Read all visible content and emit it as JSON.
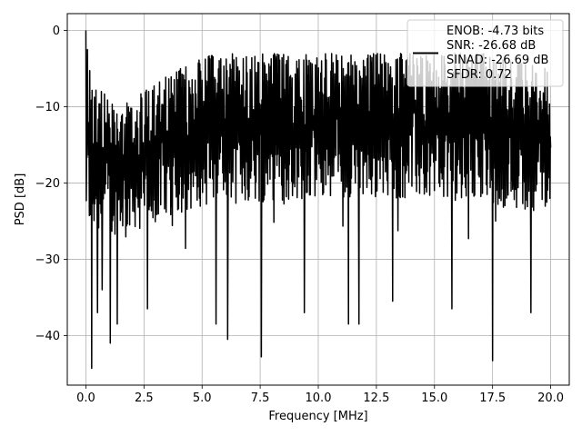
{
  "chart_data": {
    "type": "line",
    "title": "",
    "xlabel": "Frequency [MHz]",
    "ylabel": "PSD [dB]",
    "xlim": [
      -0.8,
      20.8
    ],
    "ylim": [
      -46.5,
      2.2
    ],
    "xticks": [
      0.0,
      2.5,
      5.0,
      7.5,
      10.0,
      12.5,
      15.0,
      17.5,
      20.0
    ],
    "xtick_labels": [
      "0.0",
      "2.5",
      "5.0",
      "7.5",
      "10.0",
      "12.5",
      "15.0",
      "17.5",
      "20.0"
    ],
    "yticks": [
      0,
      -10,
      -20,
      -30,
      -40
    ],
    "ytick_labels": [
      "0",
      "−10",
      "−20",
      "−30",
      "−40"
    ],
    "grid": true,
    "legend_position": "top-right",
    "legend_entries": [
      "ENOB: -4.73 bits",
      "SNR: -26.68 dB",
      "SINAD: -26.69 dB",
      "SFDR: 0.72"
    ],
    "series_color": "#000000",
    "series": [
      {
        "x_start": 0.0,
        "x_end": 20.0,
        "points": 1200,
        "upper_envelope_x": [
          0.0,
          0.3,
          0.5,
          1.0,
          2.0,
          2.5,
          3.0,
          3.5,
          4.0,
          5.0,
          6.0,
          7.0,
          8.0,
          9.0,
          10.0,
          11.0,
          12.0,
          13.0,
          14.0,
          15.0,
          16.0,
          17.0,
          18.0,
          19.0,
          20.0
        ],
        "upper_envelope_y": [
          0.0,
          -7.0,
          -6.5,
          -9.5,
          -9.0,
          -8.0,
          -7.0,
          -6.0,
          -5.0,
          -3.5,
          -3.0,
          -3.2,
          -3.0,
          -3.3,
          -3.0,
          -3.0,
          -3.0,
          -3.0,
          -3.0,
          -3.2,
          -3.0,
          -3.0,
          -3.5,
          -4.5,
          -5.0
        ],
        "typical_low_x": [
          0.0,
          1.0,
          3.0,
          5.0,
          10.0,
          15.0,
          20.0
        ],
        "typical_low_y": [
          -26.0,
          -27.0,
          -25.0,
          -23.0,
          -22.0,
          -22.0,
          -24.0
        ],
        "deep_dips": [
          {
            "x": 0.25,
            "y": -44.3
          },
          {
            "x": 0.5,
            "y": -37.0
          },
          {
            "x": 0.7,
            "y": -34.0
          },
          {
            "x": 1.05,
            "y": -41.0
          },
          {
            "x": 1.35,
            "y": -38.5
          },
          {
            "x": 2.65,
            "y": -36.5
          },
          {
            "x": 5.6,
            "y": -38.5
          },
          {
            "x": 6.1,
            "y": -40.5
          },
          {
            "x": 7.55,
            "y": -42.8
          },
          {
            "x": 9.4,
            "y": -37.0
          },
          {
            "x": 11.3,
            "y": -38.5
          },
          {
            "x": 11.75,
            "y": -38.5
          },
          {
            "x": 13.2,
            "y": -35.5
          },
          {
            "x": 15.75,
            "y": -36.5
          },
          {
            "x": 17.5,
            "y": -43.3
          },
          {
            "x": 19.15,
            "y": -37.0
          }
        ]
      }
    ]
  }
}
